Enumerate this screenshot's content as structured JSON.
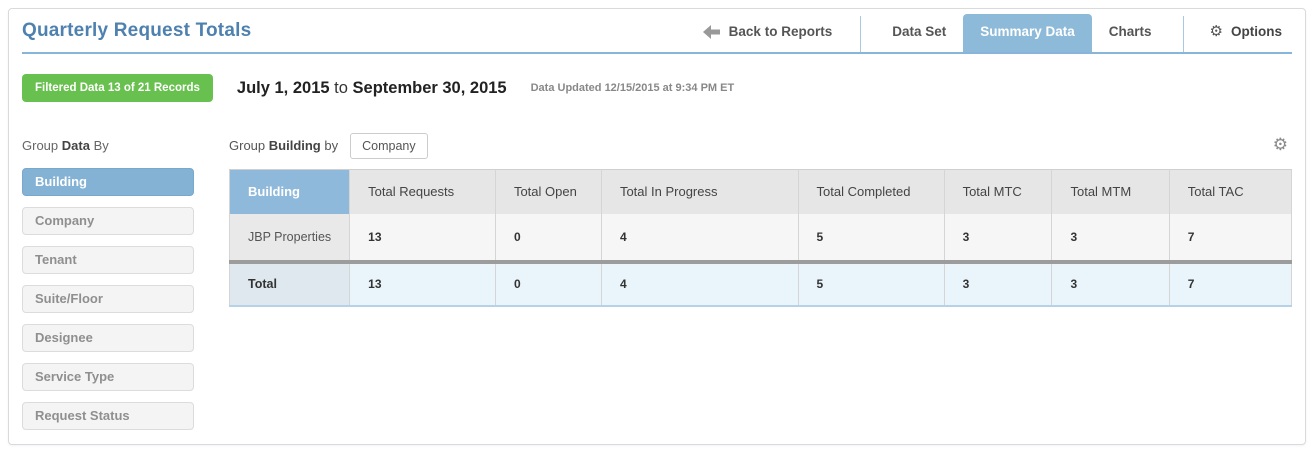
{
  "page": {
    "title": "Quarterly Request Totals"
  },
  "header": {
    "back": {
      "label": "Back to Reports"
    },
    "tabs": [
      {
        "label": "Data Set",
        "active": false
      },
      {
        "label": "Summary Data",
        "active": true
      },
      {
        "label": "Charts",
        "active": false
      }
    ],
    "options": {
      "label": "Options"
    }
  },
  "meta": {
    "filtered_badge": "Filtered Data 13 of 21 Records",
    "date_start": "July 1, 2015",
    "date_connector": "to",
    "date_end": "September 30, 2015",
    "updated": "Data Updated 12/15/2015 at 9:34 PM ET"
  },
  "sidebar": {
    "heading": {
      "pre": "Group",
      "bold": "Data",
      "post": "By"
    },
    "items": [
      {
        "label": "Building",
        "active": true
      },
      {
        "label": "Company",
        "active": false
      },
      {
        "label": "Tenant",
        "active": false
      },
      {
        "label": "Suite/Floor",
        "active": false
      },
      {
        "label": "Designee",
        "active": false
      },
      {
        "label": "Service Type",
        "active": false
      },
      {
        "label": "Request Status",
        "active": false
      }
    ]
  },
  "main": {
    "group_label": {
      "pre": "Group",
      "bold": "Building",
      "post": "by"
    },
    "group_button": "Company"
  },
  "table": {
    "columns": [
      "Building",
      "Total Requests",
      "Total Open",
      "Total In Progress",
      "Total Completed",
      "Total MTC",
      "Total MTM",
      "Total TAC"
    ],
    "rows": [
      {
        "label": "JBP Properties",
        "values": [
          "13",
          "0",
          "4",
          "5",
          "3",
          "3",
          "7"
        ]
      }
    ],
    "total_row": {
      "label": "Total",
      "values": [
        "13",
        "0",
        "4",
        "5",
        "3",
        "3",
        "7"
      ]
    }
  },
  "icons": {
    "gear": "⚙"
  },
  "colors": {
    "accent-blue": "#4e81af",
    "rule-blue": "#88b5da",
    "tab-active-bg": "#8ebad9",
    "badge-green": "#68c04f",
    "sidebar-active-bg": "#84b2d5",
    "building-header-bg": "#8fb9da",
    "table-header-bg": "#e6e6e6",
    "row-label-bg": "#e9e9e9",
    "row-bg": "#f6f6f6",
    "total-label-bg": "#dfe8ee",
    "total-bg": "#eaf4fb",
    "separator-gray": "#9c9c9c",
    "total-bottom-blue": "#b5d2e8"
  }
}
